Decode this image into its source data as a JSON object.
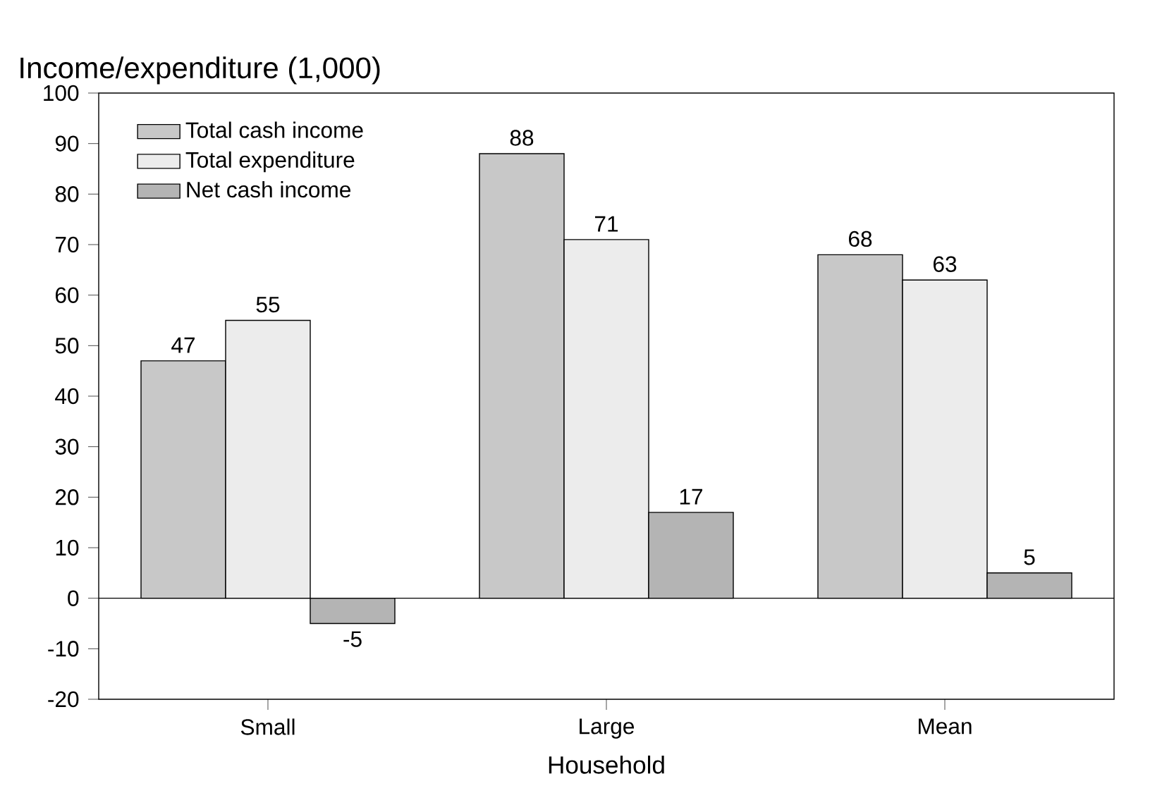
{
  "chart_data": {
    "type": "bar",
    "ylabel": "Income/expenditure (1,000)",
    "xlabel": "Household",
    "categories": [
      "Small",
      "Large",
      "Mean"
    ],
    "series": [
      {
        "name": "Total cash income",
        "color": "#c8c8c8",
        "values": [
          47,
          88,
          68
        ],
        "value_labels": [
          "47",
          "88",
          "68"
        ]
      },
      {
        "name": "Total expenditure",
        "color": "#ececec",
        "values": [
          55,
          71,
          63
        ],
        "value_labels": [
          "55",
          "71",
          "63"
        ]
      },
      {
        "name": "Net cash income",
        "color": "#b4b4b4",
        "values": [
          -5,
          17,
          5
        ],
        "value_labels": [
          "-5",
          "17",
          "5"
        ]
      }
    ],
    "ylim": [
      -20,
      100
    ],
    "yticks": [
      -20,
      -10,
      0,
      10,
      20,
      30,
      40,
      50,
      60,
      70,
      80,
      90,
      100
    ],
    "ref_lines": [
      {
        "axis": "y",
        "value": 0
      }
    ],
    "legend": "top left"
  }
}
